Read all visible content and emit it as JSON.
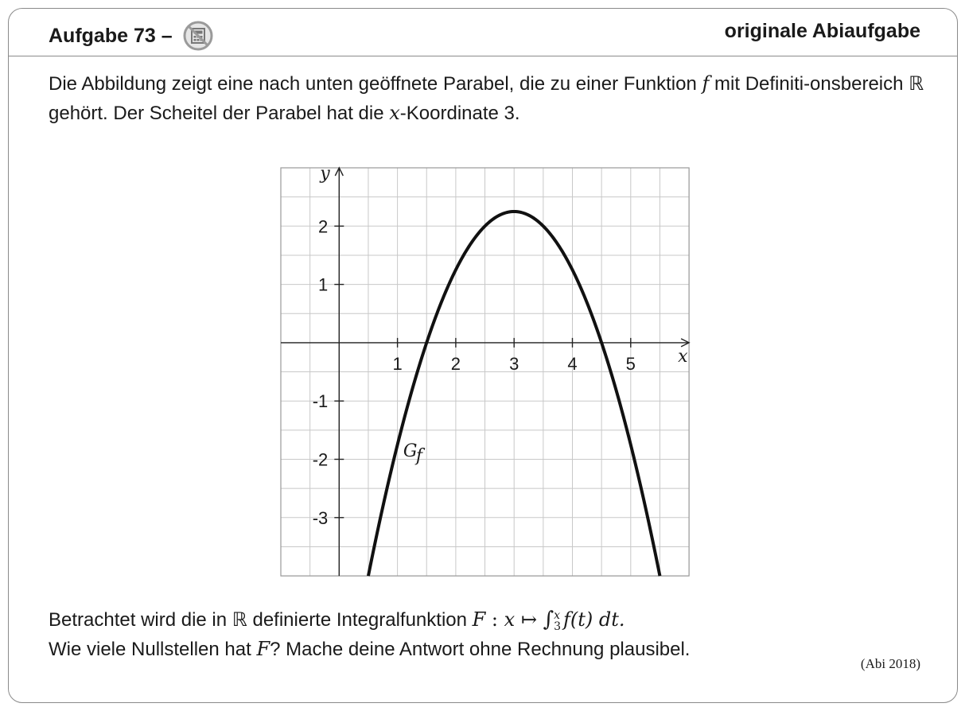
{
  "header": {
    "task_label": "Aufgabe 73 –",
    "icon": "no-calculator-icon",
    "source_label": "originale Abiaufgabe"
  },
  "intro": {
    "part1": "Die Abbildung zeigt eine nach unten geöffnete Parabel, die zu einer Funktion ",
    "f": "f",
    "part2": " mit Definiti-onsbereich ",
    "R": "ℝ",
    "part3": " gehört. Der Scheitel der Parabel hat die ",
    "x": "x",
    "part4": "-Koordinate 3."
  },
  "chart_data": {
    "type": "line",
    "function": "f(x) = -(x-3)^2 + 2.25",
    "series": [
      {
        "name": "G_f",
        "x": [
          0.5,
          1,
          1.5,
          2,
          2.5,
          3,
          3.5,
          4,
          4.5,
          5,
          5.5
        ],
        "y": [
          -4,
          -1.75,
          0,
          1.25,
          2,
          2.25,
          2,
          1.25,
          0,
          -1.75,
          -4
        ]
      }
    ],
    "xlabel": "x",
    "ylabel": "y",
    "xlim": [
      -1,
      6
    ],
    "ylim": [
      -4,
      3
    ],
    "xticks": [
      "1",
      "2",
      "3",
      "4",
      "5"
    ],
    "yticks": [
      "2",
      "1",
      "-1",
      "-2",
      "-3"
    ],
    "curve_label": "G",
    "curve_label_sub": "f",
    "grid": true,
    "curve_color": "#111111",
    "grid_color": "#c8c8c8"
  },
  "question": {
    "line1_a": "Betrachtet wird die in ",
    "R": "ℝ",
    "line1_b": " definierte Integralfunktion ",
    "F": "F",
    "colon": " : ",
    "x": "x",
    "maps": " ↦ ",
    "integral": "∫",
    "upper": "x",
    "lower": "3",
    "integrand": "f(t) dt.",
    "line2_a": "Wie viele Nullstellen hat ",
    "F2": "F",
    "line2_b": "? Mache deine Antwort ohne Rechnung plausibel."
  },
  "citation": "(Abi 2018)"
}
